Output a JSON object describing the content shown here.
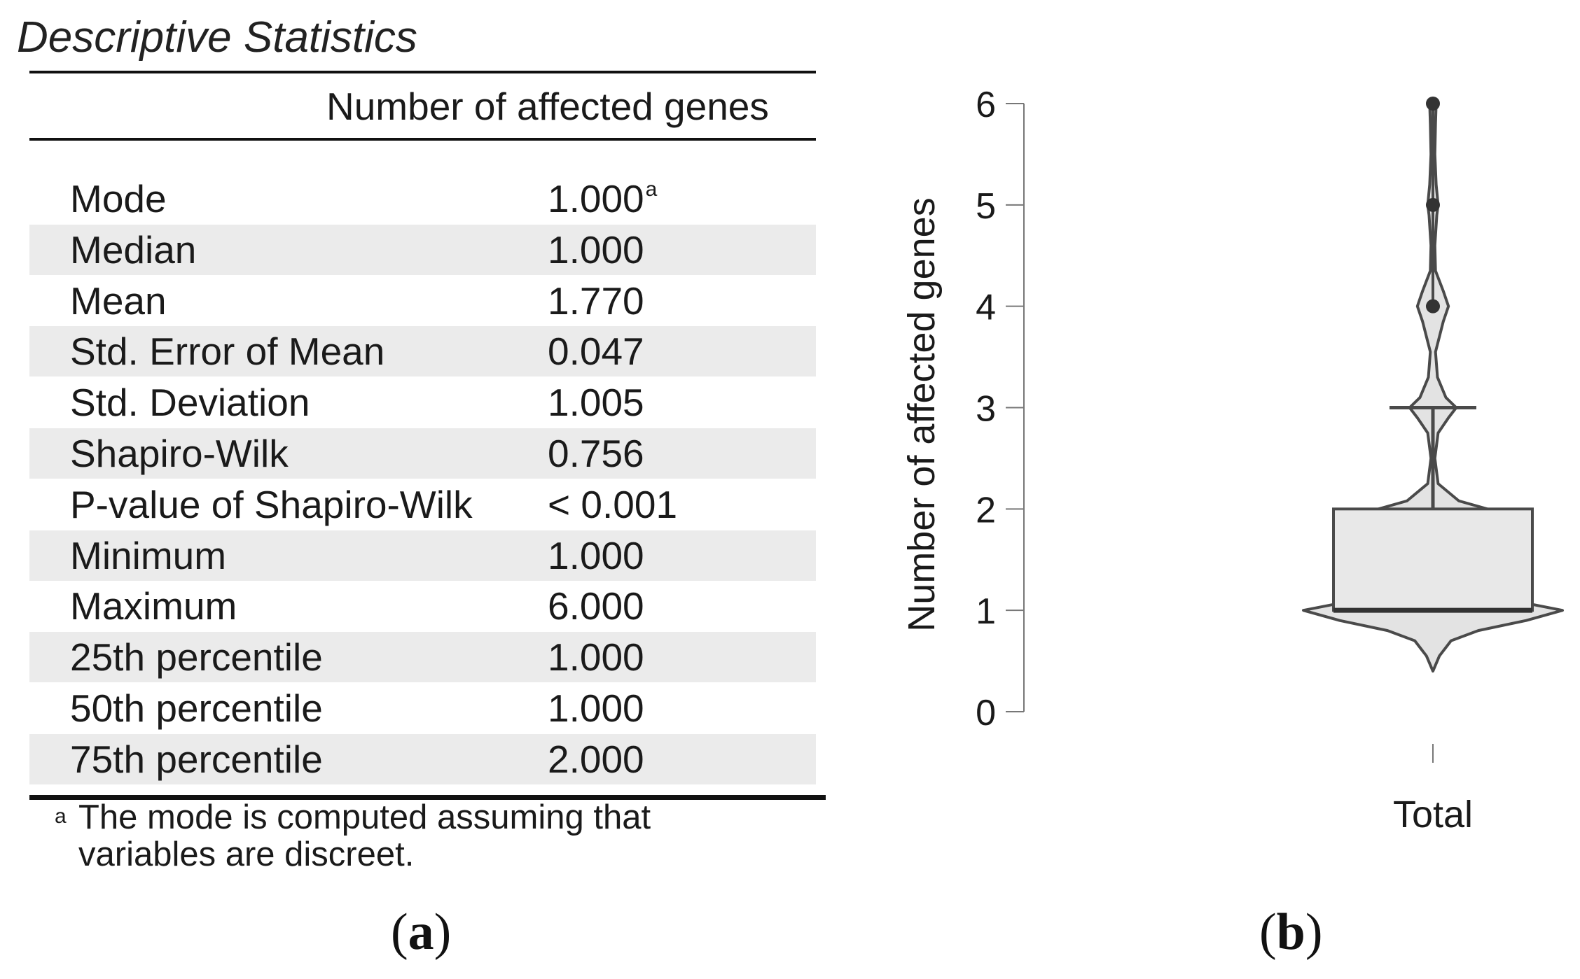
{
  "table": {
    "title": "Descriptive Statistics",
    "column_header": "Number of affected genes",
    "rows": [
      {
        "label": "Mode",
        "value": "1.000",
        "sup": "a"
      },
      {
        "label": "Median",
        "value": "1.000"
      },
      {
        "label": "Mean",
        "value": "1.770"
      },
      {
        "label": "Std. Error of Mean",
        "value": "0.047"
      },
      {
        "label": "Std. Deviation",
        "value": "1.005"
      },
      {
        "label": "Shapiro-Wilk",
        "value": "0.756"
      },
      {
        "label": "P-value of Shapiro-Wilk",
        "value": "< 0.001"
      },
      {
        "label": "Minimum",
        "value": "1.000"
      },
      {
        "label": "Maximum",
        "value": "6.000"
      },
      {
        "label": "25th percentile",
        "value": "1.000"
      },
      {
        "label": "50th percentile",
        "value": "1.000"
      },
      {
        "label": "75th percentile",
        "value": "2.000"
      }
    ],
    "footnote_mark": "a",
    "footnote": "The mode is computed assuming that variables are discreet."
  },
  "panel_labels": {
    "a_open": "(",
    "a_letter": "a",
    "a_close": ")",
    "b_open": "(",
    "b_letter": "b",
    "b_close": ")"
  },
  "chart_data": {
    "type": "violin+box",
    "xlabel": "",
    "ylabel": "Number of affected genes",
    "categories": [
      "Total"
    ],
    "ylim": [
      0,
      6
    ],
    "yticks": [
      0,
      1,
      2,
      3,
      4,
      5,
      6
    ],
    "ytick_labels": [
      "0",
      "1",
      "2",
      "3",
      "4",
      "5",
      "6"
    ],
    "box": {
      "min": 1,
      "q1": 1,
      "median": 1,
      "q3": 2,
      "whisker_high": 3
    },
    "outliers": [
      4,
      5,
      6
    ],
    "violin_density": [
      [
        0.4,
        0.0
      ],
      [
        0.55,
        0.05
      ],
      [
        0.7,
        0.14
      ],
      [
        0.8,
        0.35
      ],
      [
        0.9,
        0.72
      ],
      [
        1.0,
        1.0
      ],
      [
        1.1,
        0.6
      ],
      [
        1.2,
        0.25
      ],
      [
        1.35,
        0.12
      ],
      [
        1.6,
        0.07
      ],
      [
        1.85,
        0.1
      ],
      [
        1.95,
        0.35
      ],
      [
        2.0,
        0.42
      ],
      [
        2.08,
        0.2
      ],
      [
        2.25,
        0.04
      ],
      [
        2.5,
        0.015
      ],
      [
        2.75,
        0.04
      ],
      [
        2.9,
        0.12
      ],
      [
        3.0,
        0.18
      ],
      [
        3.1,
        0.1
      ],
      [
        3.3,
        0.035
      ],
      [
        3.55,
        0.02
      ],
      [
        3.85,
        0.08
      ],
      [
        4.0,
        0.12
      ],
      [
        4.15,
        0.08
      ],
      [
        4.35,
        0.02
      ],
      [
        4.6,
        0.015
      ],
      [
        4.9,
        0.03
      ],
      [
        5.0,
        0.04
      ],
      [
        5.2,
        0.025
      ],
      [
        5.5,
        0.015
      ],
      [
        5.8,
        0.02
      ],
      [
        6.0,
        0.025
      ]
    ],
    "colors": {
      "fill": "#e3e3e3",
      "stroke": "#4a4a4a",
      "axis": "#777777"
    }
  }
}
